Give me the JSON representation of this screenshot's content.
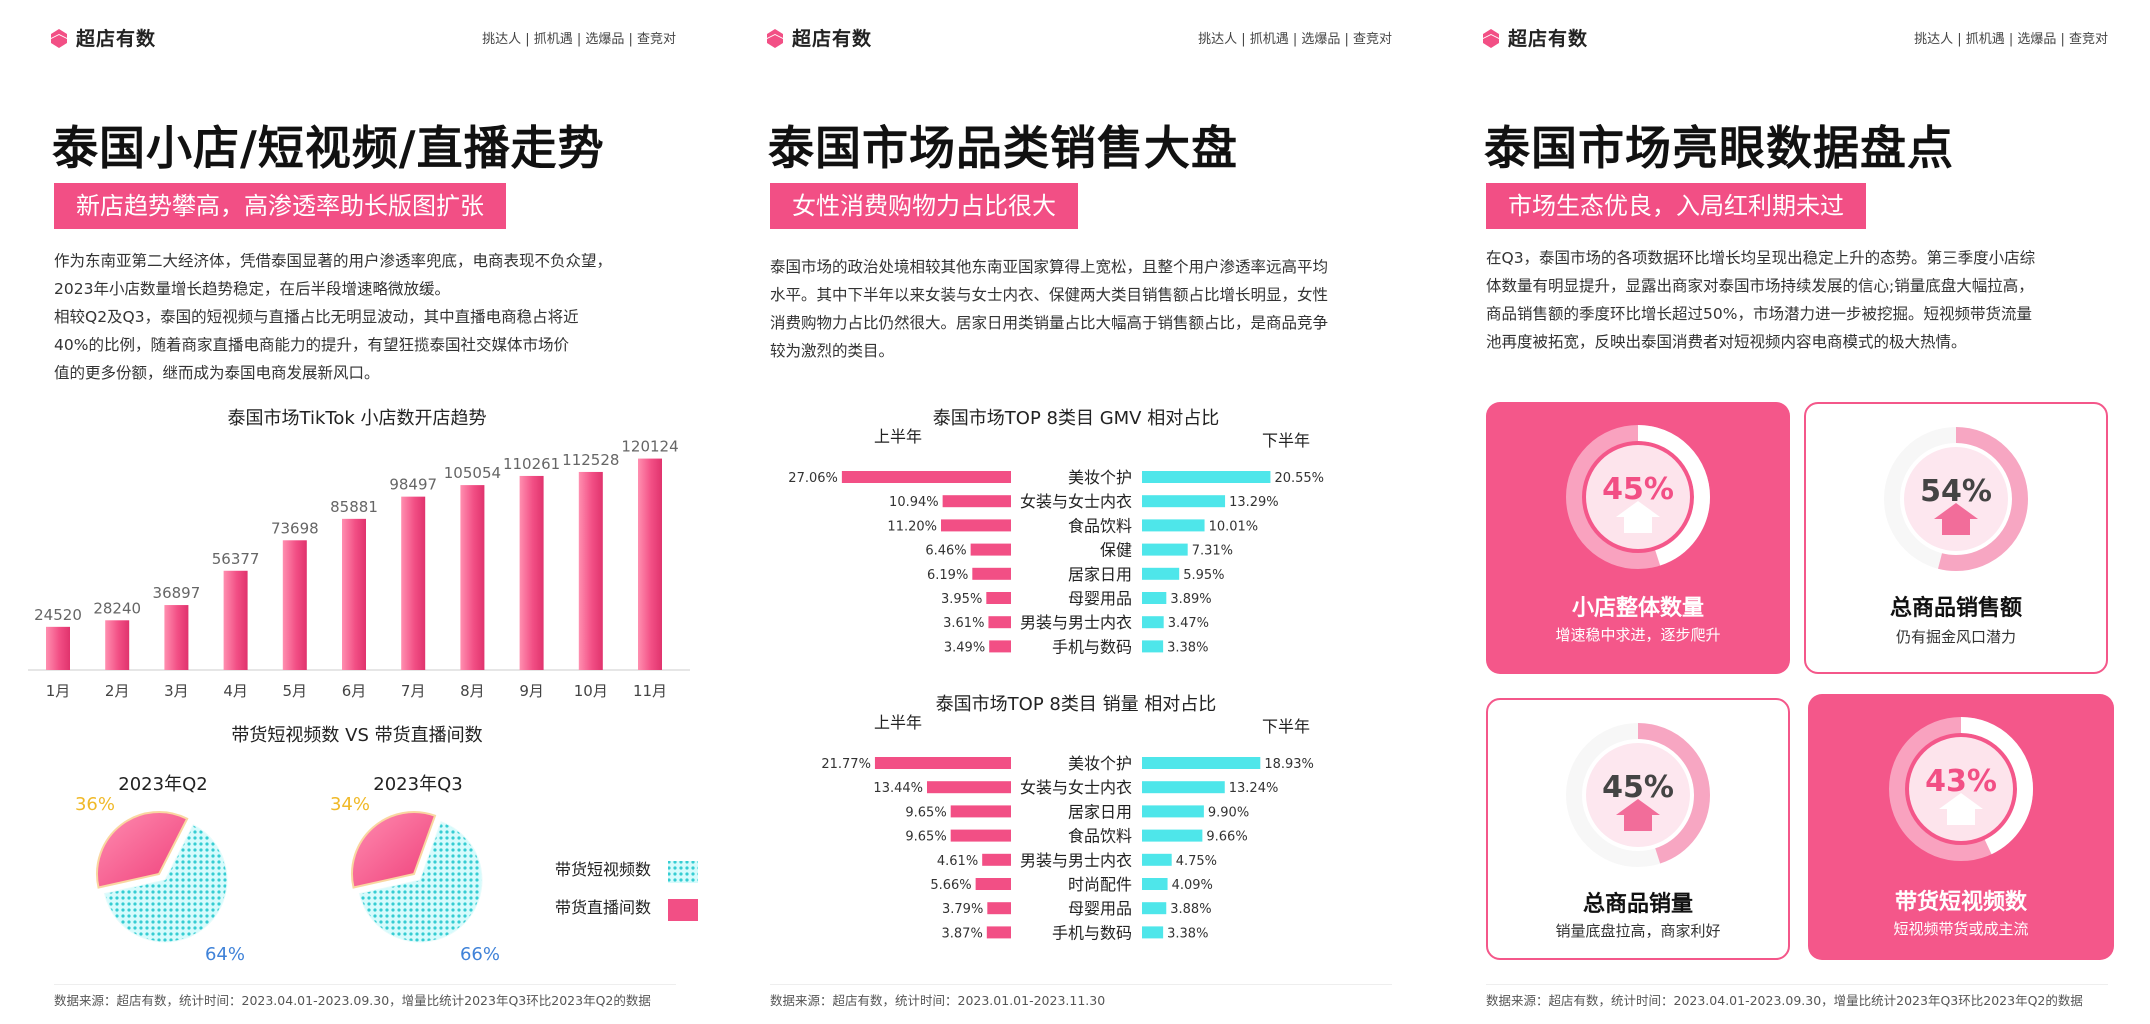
{
  "brand": {
    "name": "超店有数",
    "accent": "#f24f85",
    "cyan": "#4ee6ea",
    "logo_icon": "brand-logo-icon"
  },
  "nav": {
    "links": "挑达人 | 抓机遇 | 选爆品 | 查竞对"
  },
  "page1": {
    "title": "泰国小店/短视频/直播走势",
    "banner": "新店趋势攀高，高渗透率助长版图扩张",
    "para": [
      "作为东南亚第二大经济体，凭借泰国显著的用户渗透率兜底，电商表现不负众望，",
      "2023年小店数量增长趋势稳定，在后半段增速略微放缓。",
      "相较Q2及Q3，泰国的短视频与直播占比无明显波动，其中直播电商稳占将近",
      "40%的比例，随着商家直播电商能力的提升，有望狂揽泰国社交媒体市场价",
      "值的更多份额，继而成为泰国电商发展新风口。"
    ],
    "source": "数据来源：超店有数，统计时间：2023.04.01-2023.09.30，增量比统计2023年Q3环比2023年Q2的数据"
  },
  "page2": {
    "title": "泰国市场品类销售大盘",
    "banner": "女性消费购物力占比很大",
    "para": [
      "泰国市场的政治处境相较其他东南亚国家算得上宽松，且整个用户渗透率远高平均",
      "水平。其中下半年以来女装与女士内衣、保健两大类目销售额占比增长明显，女性",
      "消费购物力占比仍然很大。居家日用类销量占比大幅高于销售额占比，是商品竞争",
      "较为激烈的类目。"
    ],
    "source": "数据来源：超店有数，统计时间：2023.01.01-2023.11.30"
  },
  "page3": {
    "title": "泰国市场亮眼数据盘点",
    "banner": "市场生态优良，入局红利期未过",
    "para": [
      "在Q3，泰国市场的各项数据环比增长均呈现出稳定上升的态势。第三季度小店综",
      "体数量有明显提升，显露出商家对泰国市场持续发展的信心;销量底盘大幅拉高，",
      "商品销售额的季度环比增长超过50%，市场潜力进一步被挖掘。短视频带货流量",
      "池再度被拓宽，反映出泰国消费者对短视频内容电商模式的极大热情。"
    ],
    "cards": [
      {
        "value": "45%",
        "pct": 45,
        "title": "小店整体数量",
        "sub": "增速稳中求进，逐步爬升",
        "style": "filled"
      },
      {
        "value": "54%",
        "pct": 54,
        "title": "总商品销售额",
        "sub": "仍有掘金风口潜力",
        "style": "outline"
      },
      {
        "value": "45%",
        "pct": 45,
        "title": "总商品销量",
        "sub": "销量底盘拉高，商家利好",
        "style": "outline"
      },
      {
        "value": "43%",
        "pct": 43,
        "title": "带货短视频数",
        "sub": "短视频带货或成主流",
        "style": "filled"
      }
    ],
    "source": "数据来源：超店有数，统计时间：2023.04.01-2023.09.30，增量比统计2023年Q3环比2023年Q2的数据"
  },
  "chart_data": [
    {
      "type": "bar",
      "title": "泰国市场TikTok 小店数开店趋势",
      "categories": [
        "1月",
        "2月",
        "3月",
        "4月",
        "5月",
        "6月",
        "7月",
        "8月",
        "9月",
        "10月",
        "11月"
      ],
      "values": [
        24520,
        28240,
        36897,
        56377,
        73698,
        85881,
        98497,
        105054,
        110261,
        112528,
        120124
      ],
      "ylim": [
        0,
        125000
      ]
    },
    {
      "type": "pie",
      "title": "带货短视频数 VS 带货直播间数",
      "legend": [
        "带货短视频数",
        "带货直播间数"
      ],
      "pies": [
        {
          "name": "2023年Q2",
          "slices": [
            {
              "label": "带货短视频数",
              "value": 64,
              "text": "64%"
            },
            {
              "label": "带货直播间数",
              "value": 36,
              "text": "36%"
            }
          ]
        },
        {
          "name": "2023年Q3",
          "slices": [
            {
              "label": "带货短视频数",
              "value": 66,
              "text": "66%"
            },
            {
              "label": "带货直播间数",
              "value": 34,
              "text": "34%"
            }
          ]
        }
      ]
    },
    {
      "type": "bar",
      "title": "泰国市场TOP 8类目 GMV 相对占比",
      "left_label": "上半年",
      "right_label": "下半年",
      "categories": [
        "美妆个护",
        "女装与女士内衣",
        "食品饮料",
        "保健",
        "居家日用",
        "母婴用品",
        "男装与男士内衣",
        "手机与数码"
      ],
      "series": [
        {
          "name": "上半年",
          "values": [
            27.06,
            10.94,
            11.2,
            6.46,
            6.19,
            3.95,
            3.61,
            3.49
          ],
          "labels": [
            "27.06%",
            "10.94%",
            "11.20%",
            "6.46%",
            "6.19%",
            "3.95%",
            "3.61%",
            "3.49%"
          ]
        },
        {
          "name": "下半年",
          "values": [
            20.55,
            13.29,
            10.01,
            7.31,
            5.95,
            3.89,
            3.47,
            3.38
          ],
          "labels": [
            "20.55%",
            "13.29%",
            "10.01%",
            "7.31%",
            "5.95%",
            "3.89%",
            "3.47%",
            "3.38%"
          ]
        }
      ]
    },
    {
      "type": "bar",
      "title": "泰国市场TOP 8类目 销量 相对占比",
      "left_label": "上半年",
      "right_label": "下半年",
      "categories": [
        "美妆个护",
        "女装与女士内衣",
        "居家日用",
        "食品饮料",
        "男装与男士内衣",
        "时尚配件",
        "母婴用品",
        "手机与数码"
      ],
      "series": [
        {
          "name": "上半年",
          "values": [
            21.77,
            13.44,
            9.65,
            9.65,
            4.61,
            5.66,
            3.79,
            3.87
          ],
          "labels": [
            "21.77%",
            "13.44%",
            "9.65%",
            "9.65%",
            "4.61%",
            "5.66%",
            "3.79%",
            "3.87%"
          ]
        },
        {
          "name": "下半年",
          "values": [
            18.93,
            13.24,
            9.9,
            9.66,
            4.75,
            4.09,
            3.88,
            3.38
          ],
          "labels": [
            "18.93%",
            "13.24%",
            "9.90%",
            "9.66%",
            "4.75%",
            "4.09%",
            "3.88%",
            "3.38%"
          ]
        }
      ]
    }
  ]
}
